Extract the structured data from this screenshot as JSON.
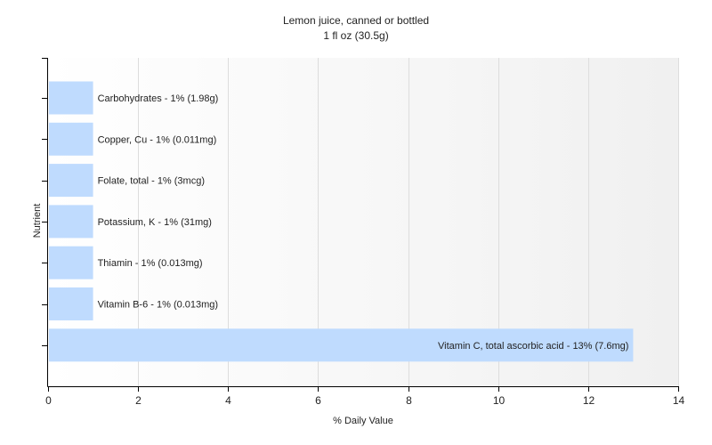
{
  "chart_data": {
    "type": "bar",
    "orientation": "horizontal",
    "title": "Lemon juice, canned or bottled",
    "subtitle": "1 fl oz (30.5g)",
    "xlabel": "% Daily Value",
    "ylabel": "Nutrient",
    "xlim": [
      0,
      14
    ],
    "xticks": [
      0,
      2,
      4,
      6,
      8,
      10,
      12,
      14
    ],
    "grid": true,
    "legend": "none",
    "colors": {
      "bar": "#bfdbfe",
      "grid": "#dddddd",
      "axis": "#000000",
      "plot_bg_start": "#ffffff",
      "plot_bg_end": "#f0f0f0"
    },
    "categories": [
      "Carbohydrates",
      "Copper, Cu",
      "Folate, total",
      "Potassium, K",
      "Thiamin",
      "Vitamin B-6",
      "Vitamin C, total ascorbic acid"
    ],
    "values": [
      1,
      1,
      1,
      1,
      1,
      1,
      13
    ],
    "data_labels": [
      "Carbohydrates - 1% (1.98g)",
      "Copper, Cu - 1% (0.011mg)",
      "Folate, total - 1% (3mcg)",
      "Potassium, K - 1% (31mg)",
      "Thiamin - 1% (0.013mg)",
      "Vitamin B-6 - 1% (0.013mg)",
      "Vitamin C, total ascorbic acid - 13% (7.6mg)"
    ]
  }
}
